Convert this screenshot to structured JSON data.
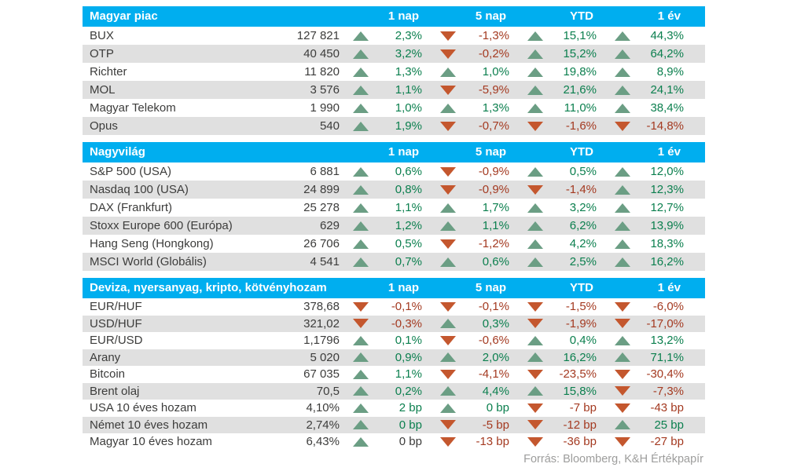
{
  "columns": [
    "1 nap",
    "5 nap",
    "YTD",
    "1 év"
  ],
  "footer": "Forrás: Bloomberg, K&H Értékpapír",
  "colors": {
    "header_bg": "#00aeef",
    "row_alt_bg": "#e0e0e0",
    "text_dark": "#3c3c3b",
    "positive_text": "#0b7f4e",
    "negative_text": "#a43a21",
    "triangle_up": "#6b9e84",
    "triangle_down": "#c4572e",
    "footer_text": "#9d9d9c"
  },
  "tables": [
    {
      "title": "Magyar piac",
      "rows": [
        {
          "name": "BUX",
          "value": "127 821",
          "changes": [
            {
              "dir": "up",
              "text": "2,3%",
              "tone": "pos"
            },
            {
              "dir": "down",
              "text": "-1,3%",
              "tone": "neg"
            },
            {
              "dir": "up",
              "text": "15,1%",
              "tone": "pos"
            },
            {
              "dir": "up",
              "text": "44,3%",
              "tone": "pos"
            }
          ]
        },
        {
          "name": "OTP",
          "value": "40 450",
          "changes": [
            {
              "dir": "up",
              "text": "3,2%",
              "tone": "pos"
            },
            {
              "dir": "down",
              "text": "-0,2%",
              "tone": "neg"
            },
            {
              "dir": "up",
              "text": "15,2%",
              "tone": "pos"
            },
            {
              "dir": "up",
              "text": "64,2%",
              "tone": "pos"
            }
          ]
        },
        {
          "name": "Richter",
          "value": "11 820",
          "changes": [
            {
              "dir": "up",
              "text": "1,3%",
              "tone": "pos"
            },
            {
              "dir": "up",
              "text": "1,0%",
              "tone": "pos"
            },
            {
              "dir": "up",
              "text": "19,8%",
              "tone": "pos"
            },
            {
              "dir": "up",
              "text": "8,9%",
              "tone": "pos"
            }
          ]
        },
        {
          "name": "MOL",
          "value": "3 576",
          "changes": [
            {
              "dir": "up",
              "text": "1,1%",
              "tone": "pos"
            },
            {
              "dir": "down",
              "text": "-5,9%",
              "tone": "neg"
            },
            {
              "dir": "up",
              "text": "21,6%",
              "tone": "pos"
            },
            {
              "dir": "up",
              "text": "24,1%",
              "tone": "pos"
            }
          ]
        },
        {
          "name": "Magyar Telekom",
          "value": "1 990",
          "changes": [
            {
              "dir": "up",
              "text": "1,0%",
              "tone": "pos"
            },
            {
              "dir": "up",
              "text": "1,3%",
              "tone": "pos"
            },
            {
              "dir": "up",
              "text": "11,0%",
              "tone": "pos"
            },
            {
              "dir": "up",
              "text": "38,4%",
              "tone": "pos"
            }
          ]
        },
        {
          "name": "Opus",
          "value": "540",
          "changes": [
            {
              "dir": "up",
              "text": "1,9%",
              "tone": "pos"
            },
            {
              "dir": "down",
              "text": "-0,7%",
              "tone": "neg"
            },
            {
              "dir": "down",
              "text": "-1,6%",
              "tone": "neg"
            },
            {
              "dir": "down",
              "text": "-14,8%",
              "tone": "neg"
            }
          ]
        }
      ]
    },
    {
      "title": "Nagyvilág",
      "rows": [
        {
          "name": "S&P 500 (USA)",
          "value": "6 881",
          "changes": [
            {
              "dir": "up",
              "text": "0,6%",
              "tone": "pos"
            },
            {
              "dir": "down",
              "text": "-0,9%",
              "tone": "neg"
            },
            {
              "dir": "up",
              "text": "0,5%",
              "tone": "pos"
            },
            {
              "dir": "up",
              "text": "12,0%",
              "tone": "pos"
            }
          ]
        },
        {
          "name": "Nasdaq 100 (USA)",
          "value": "24 899",
          "changes": [
            {
              "dir": "up",
              "text": "0,8%",
              "tone": "pos"
            },
            {
              "dir": "down",
              "text": "-0,9%",
              "tone": "neg"
            },
            {
              "dir": "down",
              "text": "-1,4%",
              "tone": "neg"
            },
            {
              "dir": "up",
              "text": "12,3%",
              "tone": "pos"
            }
          ]
        },
        {
          "name": "DAX (Frankfurt)",
          "value": "25 278",
          "changes": [
            {
              "dir": "up",
              "text": "1,1%",
              "tone": "pos"
            },
            {
              "dir": "up",
              "text": "1,7%",
              "tone": "pos"
            },
            {
              "dir": "up",
              "text": "3,2%",
              "tone": "pos"
            },
            {
              "dir": "up",
              "text": "12,7%",
              "tone": "pos"
            }
          ]
        },
        {
          "name": "Stoxx Europe 600 (Európa)",
          "value": "629",
          "changes": [
            {
              "dir": "up",
              "text": "1,2%",
              "tone": "pos"
            },
            {
              "dir": "up",
              "text": "1,1%",
              "tone": "pos"
            },
            {
              "dir": "up",
              "text": "6,2%",
              "tone": "pos"
            },
            {
              "dir": "up",
              "text": "13,9%",
              "tone": "pos"
            }
          ]
        },
        {
          "name": "Hang Seng (Hongkong)",
          "value": "26 706",
          "changes": [
            {
              "dir": "up",
              "text": "0,5%",
              "tone": "pos"
            },
            {
              "dir": "down",
              "text": "-1,2%",
              "tone": "neg"
            },
            {
              "dir": "up",
              "text": "4,2%",
              "tone": "pos"
            },
            {
              "dir": "up",
              "text": "18,3%",
              "tone": "pos"
            }
          ]
        },
        {
          "name": "MSCI World (Globális)",
          "value": "4 541",
          "changes": [
            {
              "dir": "up",
              "text": "0,7%",
              "tone": "pos"
            },
            {
              "dir": "up",
              "text": "0,6%",
              "tone": "pos"
            },
            {
              "dir": "up",
              "text": "2,5%",
              "tone": "pos"
            },
            {
              "dir": "up",
              "text": "16,2%",
              "tone": "pos"
            }
          ]
        }
      ]
    },
    {
      "title": "Deviza, nyersanyag, kripto, kötvényhozam",
      "rows": [
        {
          "name": "EUR/HUF",
          "value": "378,68",
          "changes": [
            {
              "dir": "down",
              "text": "-0,1%",
              "tone": "neg"
            },
            {
              "dir": "down",
              "text": "-0,1%",
              "tone": "neg"
            },
            {
              "dir": "down",
              "text": "-1,5%",
              "tone": "neg"
            },
            {
              "dir": "down",
              "text": "-6,0%",
              "tone": "neg"
            }
          ]
        },
        {
          "name": "USD/HUF",
          "value": "321,02",
          "changes": [
            {
              "dir": "down",
              "text": "-0,3%",
              "tone": "neg"
            },
            {
              "dir": "up",
              "text": "0,3%",
              "tone": "pos"
            },
            {
              "dir": "down",
              "text": "-1,9%",
              "tone": "neg"
            },
            {
              "dir": "down",
              "text": "-17,0%",
              "tone": "neg"
            }
          ]
        },
        {
          "name": "EUR/USD",
          "value": "1,1796",
          "changes": [
            {
              "dir": "up",
              "text": "0,1%",
              "tone": "pos"
            },
            {
              "dir": "down",
              "text": "-0,6%",
              "tone": "neg"
            },
            {
              "dir": "up",
              "text": "0,4%",
              "tone": "pos"
            },
            {
              "dir": "up",
              "text": "13,2%",
              "tone": "pos"
            }
          ]
        },
        {
          "name": "Arany",
          "value": "5 020",
          "changes": [
            {
              "dir": "up",
              "text": "0,9%",
              "tone": "pos"
            },
            {
              "dir": "up",
              "text": "2,0%",
              "tone": "pos"
            },
            {
              "dir": "up",
              "text": "16,2%",
              "tone": "pos"
            },
            {
              "dir": "up",
              "text": "71,1%",
              "tone": "pos"
            }
          ]
        },
        {
          "name": "Bitcoin",
          "value": "67 035",
          "changes": [
            {
              "dir": "up",
              "text": "1,1%",
              "tone": "pos"
            },
            {
              "dir": "down",
              "text": "-4,1%",
              "tone": "neg"
            },
            {
              "dir": "down",
              "text": "-23,5%",
              "tone": "neg"
            },
            {
              "dir": "down",
              "text": "-30,4%",
              "tone": "neg"
            }
          ]
        },
        {
          "name": "Brent olaj",
          "value": "70,5",
          "changes": [
            {
              "dir": "up",
              "text": "0,2%",
              "tone": "pos"
            },
            {
              "dir": "up",
              "text": "4,4%",
              "tone": "pos"
            },
            {
              "dir": "up",
              "text": "15,8%",
              "tone": "pos"
            },
            {
              "dir": "down",
              "text": "-7,3%",
              "tone": "neg"
            }
          ]
        },
        {
          "name": "USA 10 éves hozam",
          "value": "4,10%",
          "changes": [
            {
              "dir": "up",
              "text": "2 bp",
              "tone": "pos"
            },
            {
              "dir": "up",
              "text": "0 bp",
              "tone": "pos"
            },
            {
              "dir": "down",
              "text": "-7 bp",
              "tone": "neg"
            },
            {
              "dir": "down",
              "text": "-43 bp",
              "tone": "neg"
            }
          ]
        },
        {
          "name": "Német 10 éves hozam",
          "value": "2,74%",
          "changes": [
            {
              "dir": "up",
              "text": "0 bp",
              "tone": "pos"
            },
            {
              "dir": "down",
              "text": "-5 bp",
              "tone": "neg"
            },
            {
              "dir": "down",
              "text": "-12 bp",
              "tone": "neg"
            },
            {
              "dir": "up",
              "text": "25 bp",
              "tone": "pos"
            }
          ]
        },
        {
          "name": "Magyar 10 éves hozam",
          "value": "6,43%",
          "changes": [
            {
              "dir": "up",
              "text": "0 bp",
              "tone": "neutral"
            },
            {
              "dir": "down",
              "text": "-13 bp",
              "tone": "neg"
            },
            {
              "dir": "down",
              "text": "-36 bp",
              "tone": "neg"
            },
            {
              "dir": "down",
              "text": "-27 bp",
              "tone": "neg"
            }
          ]
        }
      ]
    }
  ]
}
